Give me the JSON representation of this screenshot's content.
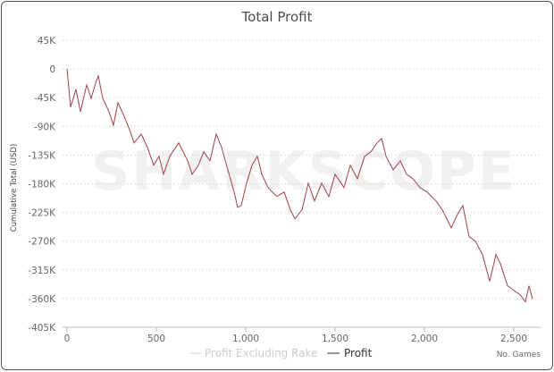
{
  "chart_data": {
    "type": "line",
    "title": "Total Profit",
    "xlabel": "No. Games",
    "ylabel": "Cumulative Total (USD)",
    "watermark": "SHARKSCOPE",
    "xlim": [
      0,
      2650
    ],
    "ylim": [
      -405000,
      45000
    ],
    "x_ticks": [
      0,
      500,
      1000,
      1500,
      2000,
      2500
    ],
    "x_tick_labels": [
      "0",
      "500",
      "1,000",
      "1,500",
      "2,000",
      "2,500"
    ],
    "y_ticks": [
      45000,
      0,
      -45000,
      -90000,
      -135000,
      -180000,
      -225000,
      -270000,
      -315000,
      -360000,
      -405000
    ],
    "y_tick_labels": [
      "45K",
      "0",
      "-45K",
      "-90K",
      "-135K",
      "-180K",
      "-225K",
      "-270K",
      "-315K",
      "-360K",
      "-405K"
    ],
    "grid": "horizontal dashed",
    "legend": "bottom-center",
    "series": [
      {
        "name": "Profit Excluding Rake",
        "color": "#cccccc",
        "hidden": true,
        "points": []
      },
      {
        "name": "Profit",
        "color": "#a0404a",
        "hidden": false,
        "points": [
          [
            0,
            0
          ],
          [
            20,
            -60000
          ],
          [
            50,
            -32000
          ],
          [
            75,
            -67000
          ],
          [
            110,
            -25000
          ],
          [
            135,
            -46000
          ],
          [
            165,
            -18000
          ],
          [
            175,
            -11000
          ],
          [
            200,
            -46000
          ],
          [
            235,
            -67000
          ],
          [
            260,
            -88000
          ],
          [
            285,
            -53000
          ],
          [
            315,
            -71000
          ],
          [
            350,
            -95000
          ],
          [
            375,
            -116000
          ],
          [
            415,
            -102000
          ],
          [
            450,
            -123000
          ],
          [
            485,
            -151000
          ],
          [
            515,
            -137000
          ],
          [
            540,
            -165000
          ],
          [
            575,
            -137000
          ],
          [
            625,
            -116000
          ],
          [
            675,
            -144000
          ],
          [
            700,
            -165000
          ],
          [
            735,
            -151000
          ],
          [
            765,
            -130000
          ],
          [
            800,
            -144000
          ],
          [
            835,
            -102000
          ],
          [
            865,
            -123000
          ],
          [
            900,
            -158000
          ],
          [
            935,
            -193000
          ],
          [
            955,
            -217000
          ],
          [
            975,
            -214000
          ],
          [
            1005,
            -179000
          ],
          [
            1035,
            -151000
          ],
          [
            1065,
            -137000
          ],
          [
            1090,
            -165000
          ],
          [
            1125,
            -186000
          ],
          [
            1175,
            -200000
          ],
          [
            1215,
            -193000
          ],
          [
            1250,
            -221000
          ],
          [
            1275,
            -235000
          ],
          [
            1315,
            -221000
          ],
          [
            1350,
            -179000
          ],
          [
            1385,
            -207000
          ],
          [
            1425,
            -179000
          ],
          [
            1465,
            -200000
          ],
          [
            1500,
            -165000
          ],
          [
            1550,
            -186000
          ],
          [
            1585,
            -151000
          ],
          [
            1625,
            -172000
          ],
          [
            1665,
            -137000
          ],
          [
            1700,
            -130000
          ],
          [
            1735,
            -116000
          ],
          [
            1760,
            -109000
          ],
          [
            1785,
            -137000
          ],
          [
            1825,
            -158000
          ],
          [
            1865,
            -144000
          ],
          [
            1900,
            -165000
          ],
          [
            1935,
            -172000
          ],
          [
            1975,
            -186000
          ],
          [
            2015,
            -193000
          ],
          [
            2065,
            -207000
          ],
          [
            2100,
            -221000
          ],
          [
            2150,
            -249000
          ],
          [
            2185,
            -228000
          ],
          [
            2215,
            -214000
          ],
          [
            2250,
            -263000
          ],
          [
            2285,
            -270000
          ],
          [
            2325,
            -291000
          ],
          [
            2365,
            -333000
          ],
          [
            2400,
            -291000
          ],
          [
            2425,
            -305000
          ],
          [
            2465,
            -340000
          ],
          [
            2500,
            -347000
          ],
          [
            2535,
            -354000
          ],
          [
            2565,
            -365000
          ],
          [
            2585,
            -340000
          ],
          [
            2605,
            -361000
          ]
        ]
      }
    ]
  }
}
